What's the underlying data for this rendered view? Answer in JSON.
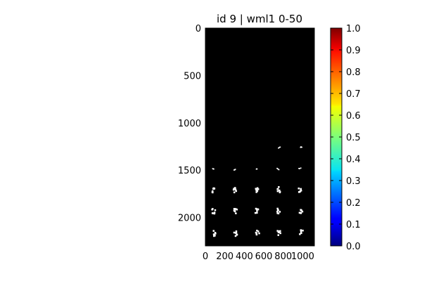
{
  "chart_data": {
    "type": "heatmap",
    "title": "id 9 | wml1 0-50",
    "xlabel": "",
    "ylabel": "",
    "xlim": [
      0,
      1120
    ],
    "ylim": [
      2300,
      0
    ],
    "x_ticks": [
      0,
      200,
      400,
      600,
      800,
      1000
    ],
    "x_tick_labels": [
      "0",
      "200",
      "400",
      "600",
      "800",
      "1000"
    ],
    "y_ticks": [
      0,
      500,
      1000,
      1500,
      2000
    ],
    "y_tick_labels": [
      "0",
      "500",
      "1000",
      "1500",
      "2000"
    ],
    "background_value": 0.0,
    "colormap": "jet",
    "colorbar": {
      "range": [
        0.0,
        1.0
      ],
      "ticks": [
        0.0,
        0.1,
        0.2,
        0.3,
        0.4,
        0.5,
        0.6,
        0.7,
        0.8,
        0.9,
        1.0
      ],
      "tick_labels": [
        "0.0",
        "0.1",
        "0.2",
        "0.3",
        "0.4",
        "0.5",
        "0.6",
        "0.7",
        "0.8",
        "0.9",
        "1.0"
      ],
      "placement": "right"
    },
    "blobs": [
      {
        "x": 85,
        "y": 1490,
        "value": 1.0
      },
      {
        "x": 305,
        "y": 1495,
        "value": 1.0
      },
      {
        "x": 525,
        "y": 1495,
        "value": 1.0
      },
      {
        "x": 745,
        "y": 1490,
        "value": 1.0
      },
      {
        "x": 970,
        "y": 1485,
        "value": 1.0
      },
      {
        "x": 85,
        "y": 1705,
        "value": 1.0
      },
      {
        "x": 305,
        "y": 1710,
        "value": 1.0
      },
      {
        "x": 525,
        "y": 1710,
        "value": 1.0
      },
      {
        "x": 750,
        "y": 1705,
        "value": 1.0
      },
      {
        "x": 975,
        "y": 1700,
        "value": 1.0
      },
      {
        "x": 85,
        "y": 1935,
        "value": 1.0
      },
      {
        "x": 310,
        "y": 1935,
        "value": 1.0
      },
      {
        "x": 530,
        "y": 1935,
        "value": 1.0
      },
      {
        "x": 755,
        "y": 1930,
        "value": 1.0
      },
      {
        "x": 980,
        "y": 1925,
        "value": 1.0
      },
      {
        "x": 85,
        "y": 2165,
        "value": 1.0
      },
      {
        "x": 310,
        "y": 2165,
        "value": 1.0
      },
      {
        "x": 535,
        "y": 2165,
        "value": 1.0
      },
      {
        "x": 755,
        "y": 2160,
        "value": 1.0
      },
      {
        "x": 985,
        "y": 2160,
        "value": 1.0
      },
      {
        "x": 760,
        "y": 1265,
        "value": 1.0
      },
      {
        "x": 985,
        "y": 1260,
        "value": 1.0
      }
    ]
  }
}
